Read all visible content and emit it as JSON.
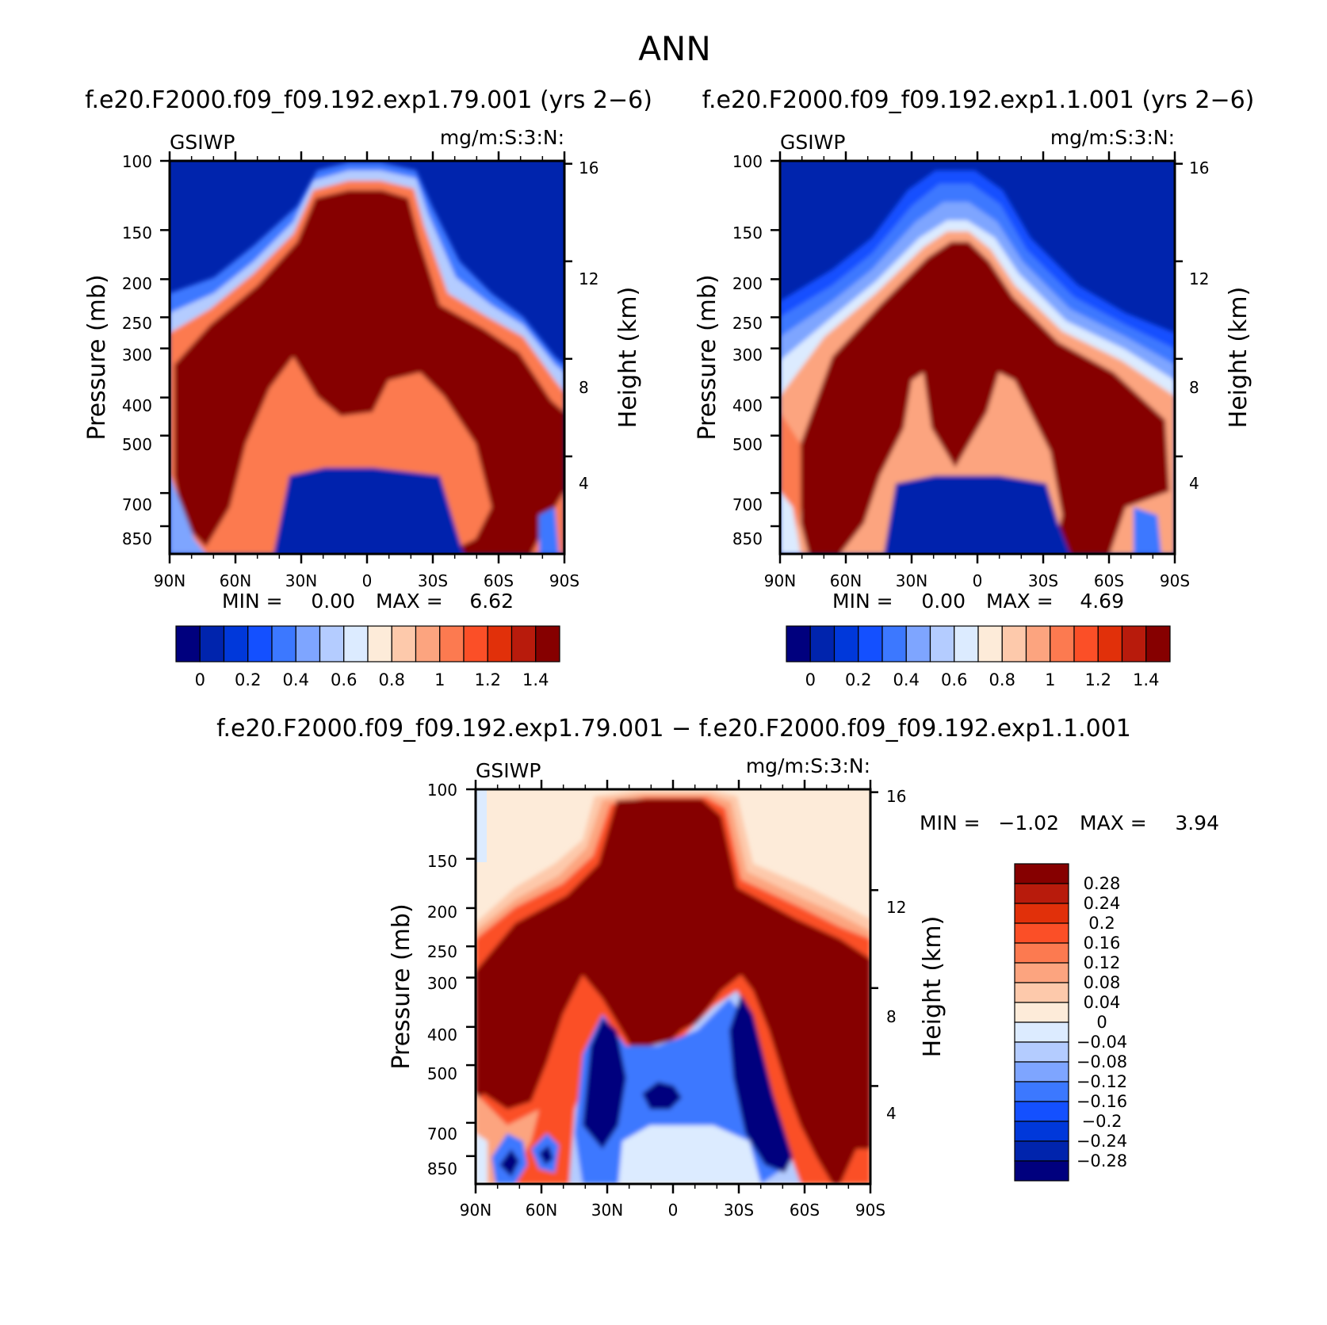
{
  "figure": {
    "title": "ANN",
    "panel_titles": [
      "f.e20.F2000.f09_f09.192.exp1.79.001 (yrs 2−6)",
      "f.e20.F2000.f09_f09.192.exp1.1.001 (yrs 2−6)",
      "f.e20.F2000.f09_f09.192.exp1.79.001 − f.e20.F2000.f09_f09.192.exp1.1.001"
    ],
    "colors": {
      "abs_palette": [
        "#00007e",
        "#0024ad",
        "#0038da",
        "#1450ff",
        "#3c78ff",
        "#7ea5ff",
        "#b4ccff",
        "#dcebff",
        "#fdebd9",
        "#fdc9ab",
        "#fca47f",
        "#fc7a50",
        "#fb4f27",
        "#e1300a",
        "#b81b0c",
        "#860000"
      ],
      "diff_palette": [
        "#00007e",
        "#0024ad",
        "#0038da",
        "#1450ff",
        "#3c78ff",
        "#7ea5ff",
        "#b4ccff",
        "#dcebff",
        "#fdebd9",
        "#fdc9ab",
        "#fca47f",
        "#fc7a50",
        "#fb4f27",
        "#e1300a",
        "#b81b0c",
        "#860000"
      ]
    }
  },
  "chart_data": [
    {
      "type": "heatmap",
      "panel": "test",
      "variable": "GSIWP",
      "units": "mg/m:S:3:N:",
      "title": "f.e20.F2000.f09_f09.192.exp1.79.001 (yrs 2−6)",
      "ylabel": "Pressure (mb)",
      "ylabel_right": "Height (km)",
      "x_ticks": [
        "90N",
        "60N",
        "30N",
        "0",
        "30S",
        "60S",
        "90S"
      ],
      "y_ticks": [
        "100",
        "150",
        "200",
        "250",
        "300",
        "400",
        "500",
        "700",
        "850"
      ],
      "y_ticks_right": [
        "16",
        "12",
        "8",
        "4"
      ],
      "ylim": [
        100,
        1000
      ],
      "y_log": true,
      "stats": {
        "min_label": "MIN =",
        "min": "0.00",
        "max_label": "MAX =",
        "max": "6.62"
      },
      "colorbar_labels": [
        "0",
        "0.2",
        "0.4",
        "0.6",
        "0.8",
        "1",
        "1.2",
        "1.4"
      ],
      "colorbar_orientation": "horizontal",
      "levels": [
        0,
        0.1,
        0.2,
        0.3,
        0.4,
        0.5,
        0.6,
        0.7,
        0.8,
        0.9,
        1.0,
        1.1,
        1.2,
        1.3,
        1.4
      ]
    },
    {
      "type": "heatmap",
      "panel": "control",
      "variable": "GSIWP",
      "units": "mg/m:S:3:N:",
      "title": "f.e20.F2000.f09_f09.192.exp1.1.001 (yrs 2−6)",
      "ylabel": "Pressure (mb)",
      "ylabel_right": "Height (km)",
      "x_ticks": [
        "90N",
        "60N",
        "30N",
        "0",
        "30S",
        "60S",
        "90S"
      ],
      "y_ticks": [
        "100",
        "150",
        "200",
        "250",
        "300",
        "400",
        "500",
        "700",
        "850"
      ],
      "y_ticks_right": [
        "16",
        "12",
        "8",
        "4"
      ],
      "ylim": [
        100,
        1000
      ],
      "y_log": true,
      "stats": {
        "min_label": "MIN =",
        "min": "0.00",
        "max_label": "MAX =",
        "max": "4.69"
      },
      "colorbar_labels": [
        "0",
        "0.2",
        "0.4",
        "0.6",
        "0.8",
        "1",
        "1.2",
        "1.4"
      ],
      "colorbar_orientation": "horizontal",
      "levels": [
        0,
        0.1,
        0.2,
        0.3,
        0.4,
        0.5,
        0.6,
        0.7,
        0.8,
        0.9,
        1.0,
        1.1,
        1.2,
        1.3,
        1.4
      ]
    },
    {
      "type": "heatmap",
      "panel": "difference",
      "variable": "GSIWP",
      "units": "mg/m:S:3:N:",
      "title": "f.e20.F2000.f09_f09.192.exp1.79.001 − f.e20.F2000.f09_f09.192.exp1.1.001",
      "ylabel": "Pressure (mb)",
      "ylabel_right": "Height (km)",
      "x_ticks": [
        "90N",
        "60N",
        "30N",
        "0",
        "30S",
        "60S",
        "90S"
      ],
      "y_ticks": [
        "100",
        "150",
        "200",
        "250",
        "300",
        "400",
        "500",
        "700",
        "850"
      ],
      "y_ticks_right": [
        "16",
        "12",
        "8",
        "4"
      ],
      "ylim": [
        100,
        1000
      ],
      "y_log": true,
      "stats": {
        "min_label": "MIN =",
        "min": "−1.02",
        "max_label": "MAX =",
        "max": "3.94"
      },
      "colorbar_labels": [
        "0.28",
        "0.24",
        "0.2",
        "0.16",
        "0.12",
        "0.08",
        "0.04",
        "0",
        "−0.04",
        "−0.08",
        "−0.12",
        "−0.16",
        "−0.2",
        "−0.24",
        "−0.28"
      ],
      "colorbar_orientation": "vertical",
      "levels": [
        -0.28,
        -0.24,
        -0.2,
        -0.16,
        -0.12,
        -0.08,
        -0.04,
        0,
        0.04,
        0.08,
        0.12,
        0.16,
        0.2,
        0.24,
        0.28
      ]
    }
  ]
}
